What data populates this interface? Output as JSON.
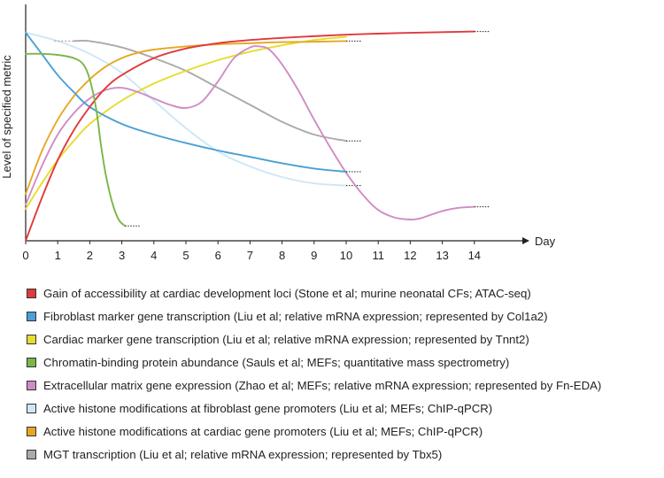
{
  "chart_data": {
    "type": "line",
    "ylabel": "Level of specified metric",
    "xlabel": "Day",
    "x_ticks": [
      "0",
      "1",
      "2",
      "3",
      "4",
      "5",
      "6",
      "7",
      "8",
      "9",
      "10",
      "11",
      "12",
      "13",
      "14"
    ],
    "xlim": [
      0,
      15
    ],
    "ylim": [
      0,
      1
    ],
    "series": [
      {
        "name": "Gain of accessibility at cardiac development loci (Stone et al; murine neonatal CFs; ATAC-seq)",
        "color": "#e03a3c",
        "x": [
          0,
          0.5,
          1,
          1.5,
          2,
          2.5,
          3,
          4,
          5,
          6,
          7,
          8,
          9,
          10,
          11,
          12,
          13,
          14
        ],
        "y": [
          0.0,
          0.2,
          0.38,
          0.52,
          0.63,
          0.72,
          0.78,
          0.86,
          0.905,
          0.93,
          0.945,
          0.955,
          0.963,
          0.97,
          0.975,
          0.979,
          0.982,
          0.985
        ],
        "continues_dotted": true
      },
      {
        "name": "Fibroblast marker gene transcription (Liu et al; relative mRNA expression; represented by Col1a2)",
        "color": "#4b9fd5",
        "x": [
          0,
          0.5,
          1,
          1.5,
          2,
          3,
          4,
          5,
          6,
          7,
          8,
          9,
          10
        ],
        "y": [
          0.98,
          0.88,
          0.78,
          0.7,
          0.63,
          0.55,
          0.5,
          0.46,
          0.425,
          0.395,
          0.365,
          0.34,
          0.325
        ],
        "continues_dotted": true
      },
      {
        "name": "Cardiac marker gene transcription (Liu et al; relative mRNA expression; represented by Tnnt2)",
        "color": "#e6dd2c",
        "x": [
          0,
          0.5,
          1,
          1.5,
          2,
          3,
          4,
          5,
          6,
          7,
          8,
          9,
          10
        ],
        "y": [
          0.15,
          0.27,
          0.38,
          0.47,
          0.55,
          0.66,
          0.74,
          0.8,
          0.85,
          0.89,
          0.92,
          0.945,
          0.96
        ],
        "continues_dotted": false
      },
      {
        "name": "Chromatin-binding protein abundance (Sauls et al; MEFs; quantitative mass spectrometry)",
        "color": "#7ab648",
        "x": [
          0,
          0.5,
          1,
          1.5,
          1.8,
          2.0,
          2.2,
          2.35,
          2.5,
          2.7,
          2.9,
          3.1
        ],
        "y": [
          0.88,
          0.88,
          0.875,
          0.86,
          0.83,
          0.76,
          0.62,
          0.45,
          0.31,
          0.18,
          0.1,
          0.07
        ],
        "continues_dotted": true
      },
      {
        "name": "Extracellular matrix gene expression (Zhao et al; MEFs; relative mRNA expression; represented by Fn-EDA)",
        "color": "#d08cc4",
        "x": [
          0,
          0.5,
          1,
          1.5,
          2,
          2.5,
          3,
          3.5,
          4,
          4.5,
          5,
          5.5,
          6,
          6.5,
          7,
          7.3,
          7.6,
          8,
          8.5,
          9,
          9.5,
          10,
          10.5,
          11,
          11.5,
          12,
          12.3,
          12.6,
          13,
          13.5,
          14
        ],
        "y": [
          0.17,
          0.35,
          0.5,
          0.6,
          0.67,
          0.71,
          0.72,
          0.7,
          0.67,
          0.64,
          0.625,
          0.655,
          0.75,
          0.86,
          0.91,
          0.915,
          0.9,
          0.83,
          0.71,
          0.57,
          0.44,
          0.32,
          0.22,
          0.145,
          0.11,
          0.1,
          0.105,
          0.12,
          0.14,
          0.155,
          0.16
        ],
        "continues_dotted": true
      },
      {
        "name": "Active histone modifications at fibroblast gene promoters (Liu et al; MEFs; ChIP-qPCR)",
        "color": "#cde7f6",
        "x": [
          0,
          1,
          2,
          3,
          4,
          5,
          6,
          7,
          8,
          9,
          10
        ],
        "y": [
          0.98,
          0.94,
          0.88,
          0.79,
          0.66,
          0.53,
          0.42,
          0.35,
          0.3,
          0.27,
          0.26
        ],
        "continues_dotted": true
      },
      {
        "name": "Active histone modifications at cardiac gene promoters (Liu et al; MEFs; ChIP-qPCR)",
        "color": "#e5a823",
        "x": [
          0,
          0.5,
          1,
          1.5,
          2,
          2.5,
          3,
          3.5,
          4,
          5,
          6,
          7,
          8,
          9,
          10
        ],
        "y": [
          0.22,
          0.42,
          0.57,
          0.68,
          0.76,
          0.82,
          0.86,
          0.885,
          0.9,
          0.915,
          0.925,
          0.93,
          0.935,
          0.937,
          0.94
        ],
        "continues_dotted": true
      },
      {
        "name": "MGT transcription (Liu et al; relative mRNA expression; represented by Tbx5)",
        "color": "#aaaaaa",
        "x": [
          1.5,
          2,
          3,
          4,
          5,
          6,
          7,
          8,
          9,
          10
        ],
        "y": [
          0.94,
          0.94,
          0.91,
          0.86,
          0.8,
          0.72,
          0.64,
          0.56,
          0.5,
          0.47
        ],
        "continues_dotted": true,
        "dotted_start": true
      }
    ]
  }
}
